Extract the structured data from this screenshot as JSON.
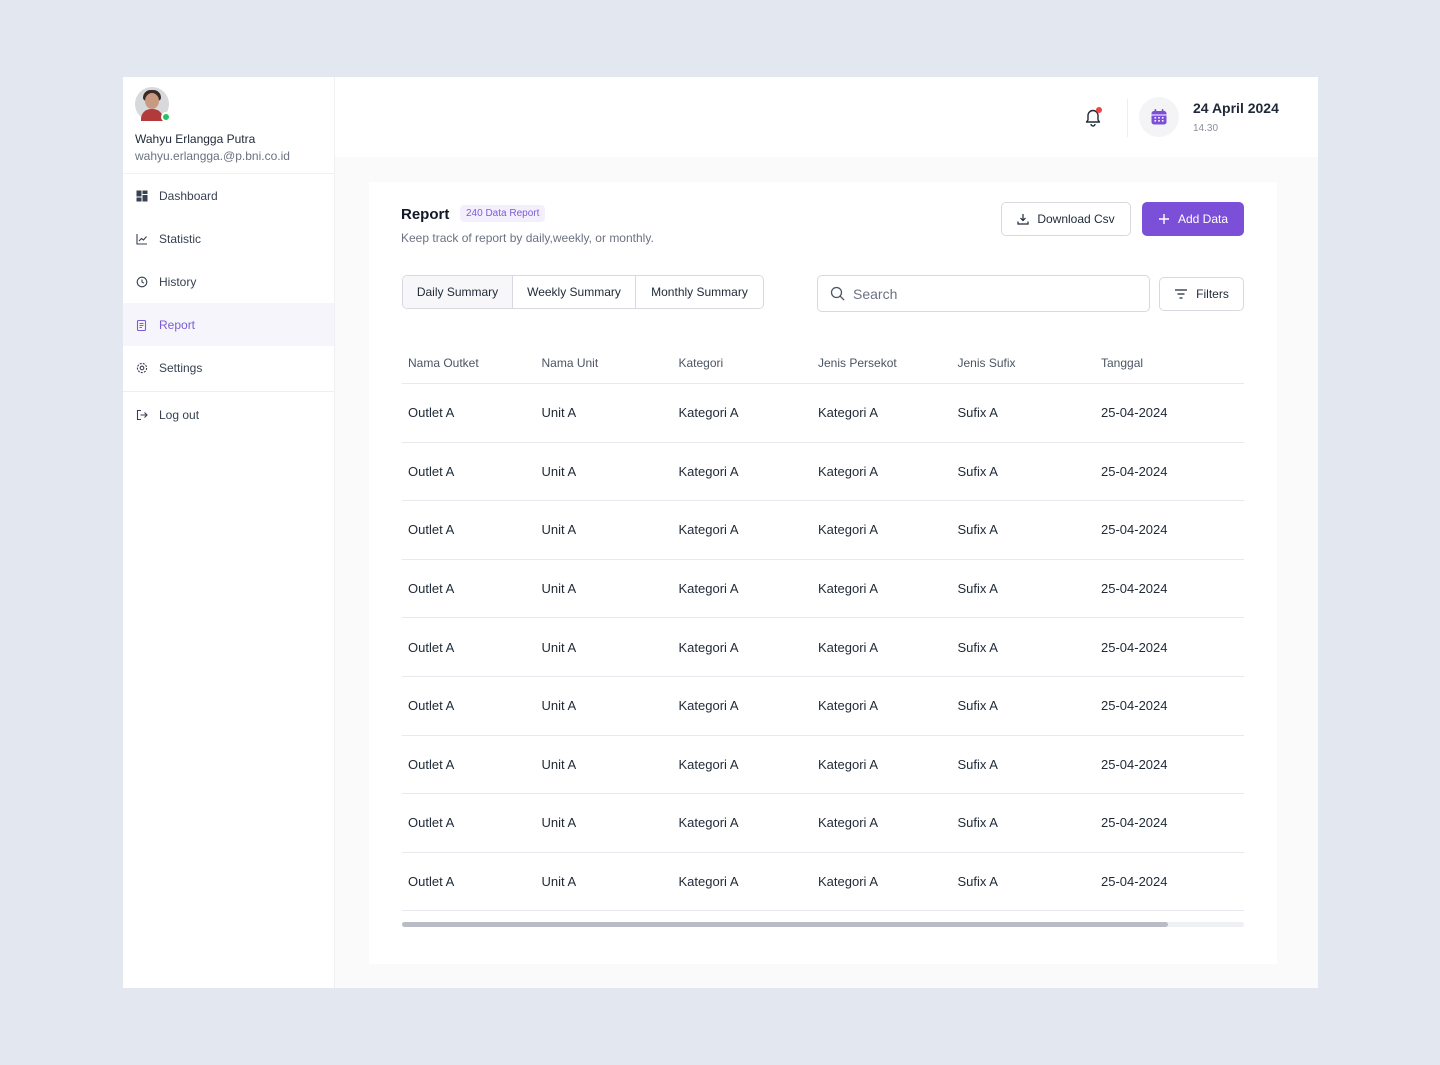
{
  "profile": {
    "name": "Wahyu Erlangga Putra",
    "email": "wahyu.erlangga.@p.bni.co.id"
  },
  "sidebar": {
    "items": [
      {
        "label": "Dashboard",
        "icon": "dashboard-icon"
      },
      {
        "label": "Statistic",
        "icon": "chart-line-icon"
      },
      {
        "label": "History",
        "icon": "history-icon"
      },
      {
        "label": "Report",
        "icon": "report-icon",
        "active": true
      },
      {
        "label": "Settings",
        "icon": "gear-icon"
      }
    ],
    "logout": "Log out"
  },
  "header": {
    "date": "24 April 2024",
    "time": "14.30"
  },
  "report": {
    "title": "Report",
    "badge": "240 Data Report",
    "subtitle": "Keep track of report by daily,weekly, or monthly.",
    "download_label": "Download Csv",
    "add_label": "Add Data",
    "tabs": [
      "Daily Summary",
      "Weekly Summary",
      "Monthly Summary"
    ],
    "active_tab": "Daily Summary",
    "search_placeholder": "Search",
    "filters_label": "Filters"
  },
  "table": {
    "columns": [
      "Nama Outket",
      "Nama Unit",
      "Kategori",
      "Jenis Persekot",
      "Jenis Sufix",
      "Tanggal"
    ],
    "rows": [
      [
        "Outlet A",
        "Unit A",
        "Kategori A",
        "Kategori A",
        "Sufix A",
        "25-04-2024"
      ],
      [
        "Outlet A",
        "Unit A",
        "Kategori A",
        "Kategori A",
        "Sufix A",
        "25-04-2024"
      ],
      [
        "Outlet A",
        "Unit A",
        "Kategori A",
        "Kategori A",
        "Sufix A",
        "25-04-2024"
      ],
      [
        "Outlet A",
        "Unit A",
        "Kategori A",
        "Kategori A",
        "Sufix A",
        "25-04-2024"
      ],
      [
        "Outlet A",
        "Unit A",
        "Kategori A",
        "Kategori A",
        "Sufix A",
        "25-04-2024"
      ],
      [
        "Outlet A",
        "Unit A",
        "Kategori A",
        "Kategori A",
        "Sufix A",
        "25-04-2024"
      ],
      [
        "Outlet A",
        "Unit A",
        "Kategori A",
        "Kategori A",
        "Sufix A",
        "25-04-2024"
      ],
      [
        "Outlet A",
        "Unit A",
        "Kategori A",
        "Kategori A",
        "Sufix A",
        "25-04-2024"
      ],
      [
        "Outlet A",
        "Unit A",
        "Kategori A",
        "Kategori A",
        "Sufix A",
        "25-04-2024"
      ]
    ],
    "scroll_fraction": 0.91
  },
  "colors": {
    "accent": "#7c4fd8",
    "badge_bg": "#f3effd",
    "online": "#22c55e",
    "notification": "#ef4444"
  }
}
